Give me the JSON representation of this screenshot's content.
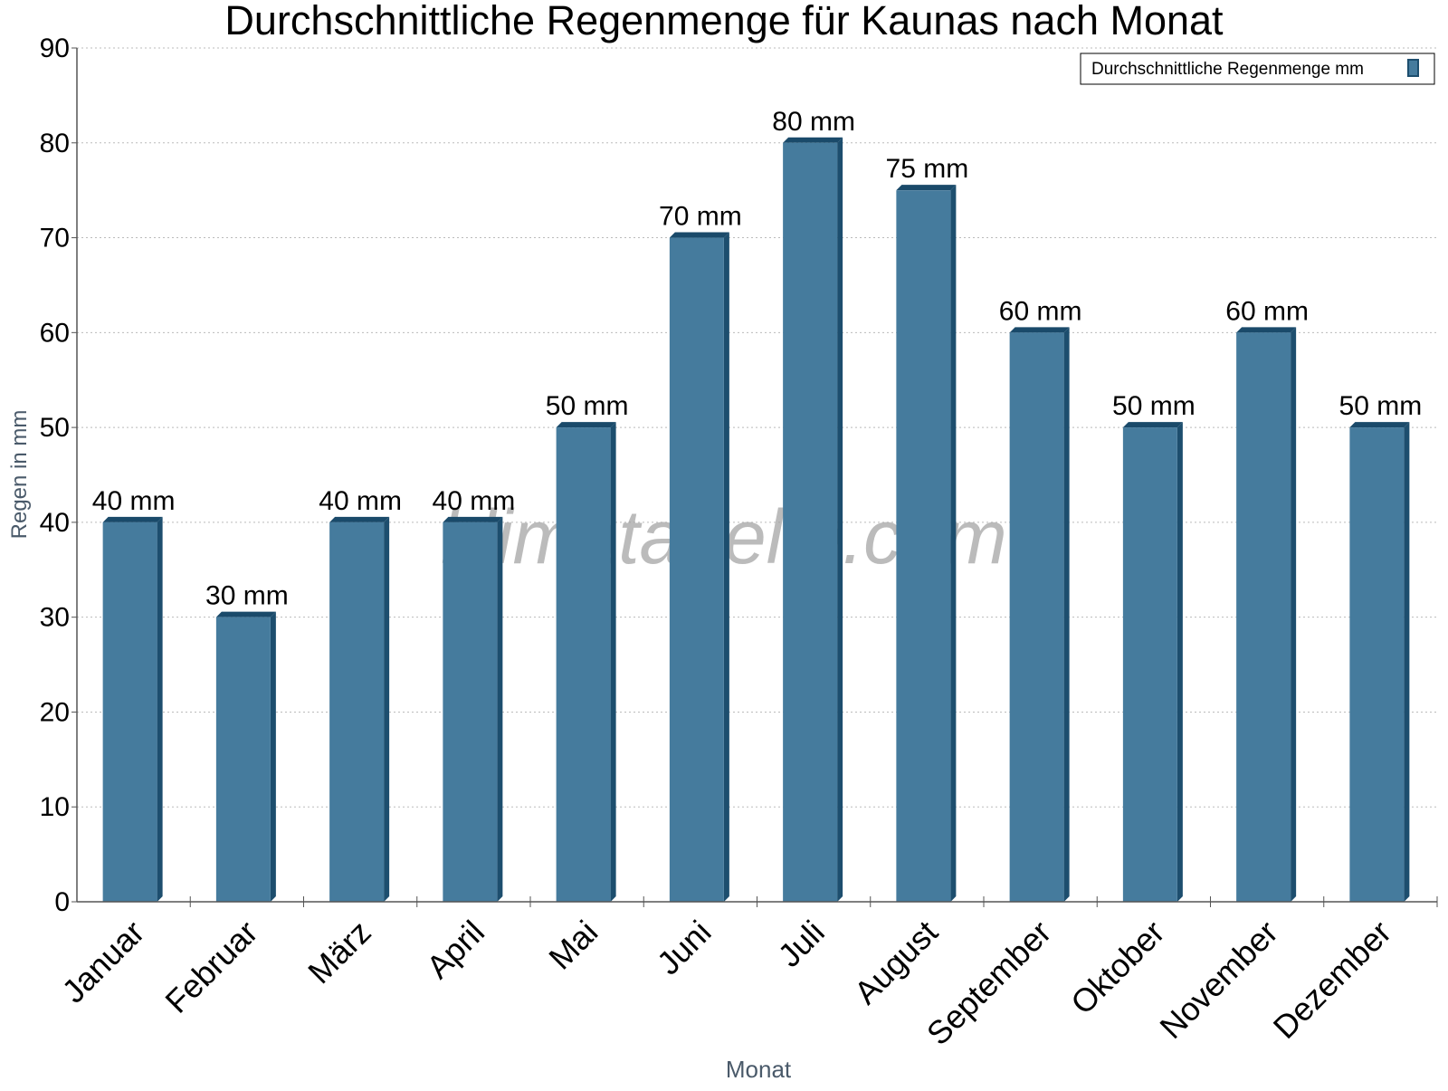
{
  "watermark": "klimatabelle.com",
  "chart_data": {
    "type": "bar",
    "title": "Durchschnittliche Regenmenge für Kaunas nach Monat",
    "xlabel": "Monat",
    "ylabel": "Regen in mm",
    "categories": [
      "Januar",
      "Februar",
      "März",
      "April",
      "Mai",
      "Juni",
      "Juli",
      "August",
      "September",
      "Oktober",
      "November",
      "Dezember"
    ],
    "series": [
      {
        "name": "Durchschnittliche Regenmenge mm",
        "values": [
          40,
          30,
          40,
          40,
          50,
          70,
          80,
          75,
          60,
          50,
          60,
          50
        ],
        "labels": [
          "40 mm",
          "30 mm",
          "40 mm",
          "40 mm",
          "50 mm",
          "70 mm",
          "80 mm",
          "75 mm",
          "60 mm",
          "50 mm",
          "60 mm",
          "50 mm"
        ]
      }
    ],
    "ylim": [
      0,
      90
    ],
    "yticks": [
      0,
      10,
      20,
      30,
      40,
      50,
      60,
      70,
      80,
      90
    ],
    "grid": true,
    "legend_position": "top-right",
    "colors": {
      "bar_front": "#457B9D",
      "bar_side": "#1D4E6E",
      "bar_top": "#1A4A6A",
      "axis": "#555555",
      "grid": "#BBBBBB",
      "label": "#000000",
      "axis_title": "#4A5A6A",
      "watermark": "#9E9E9E"
    }
  }
}
